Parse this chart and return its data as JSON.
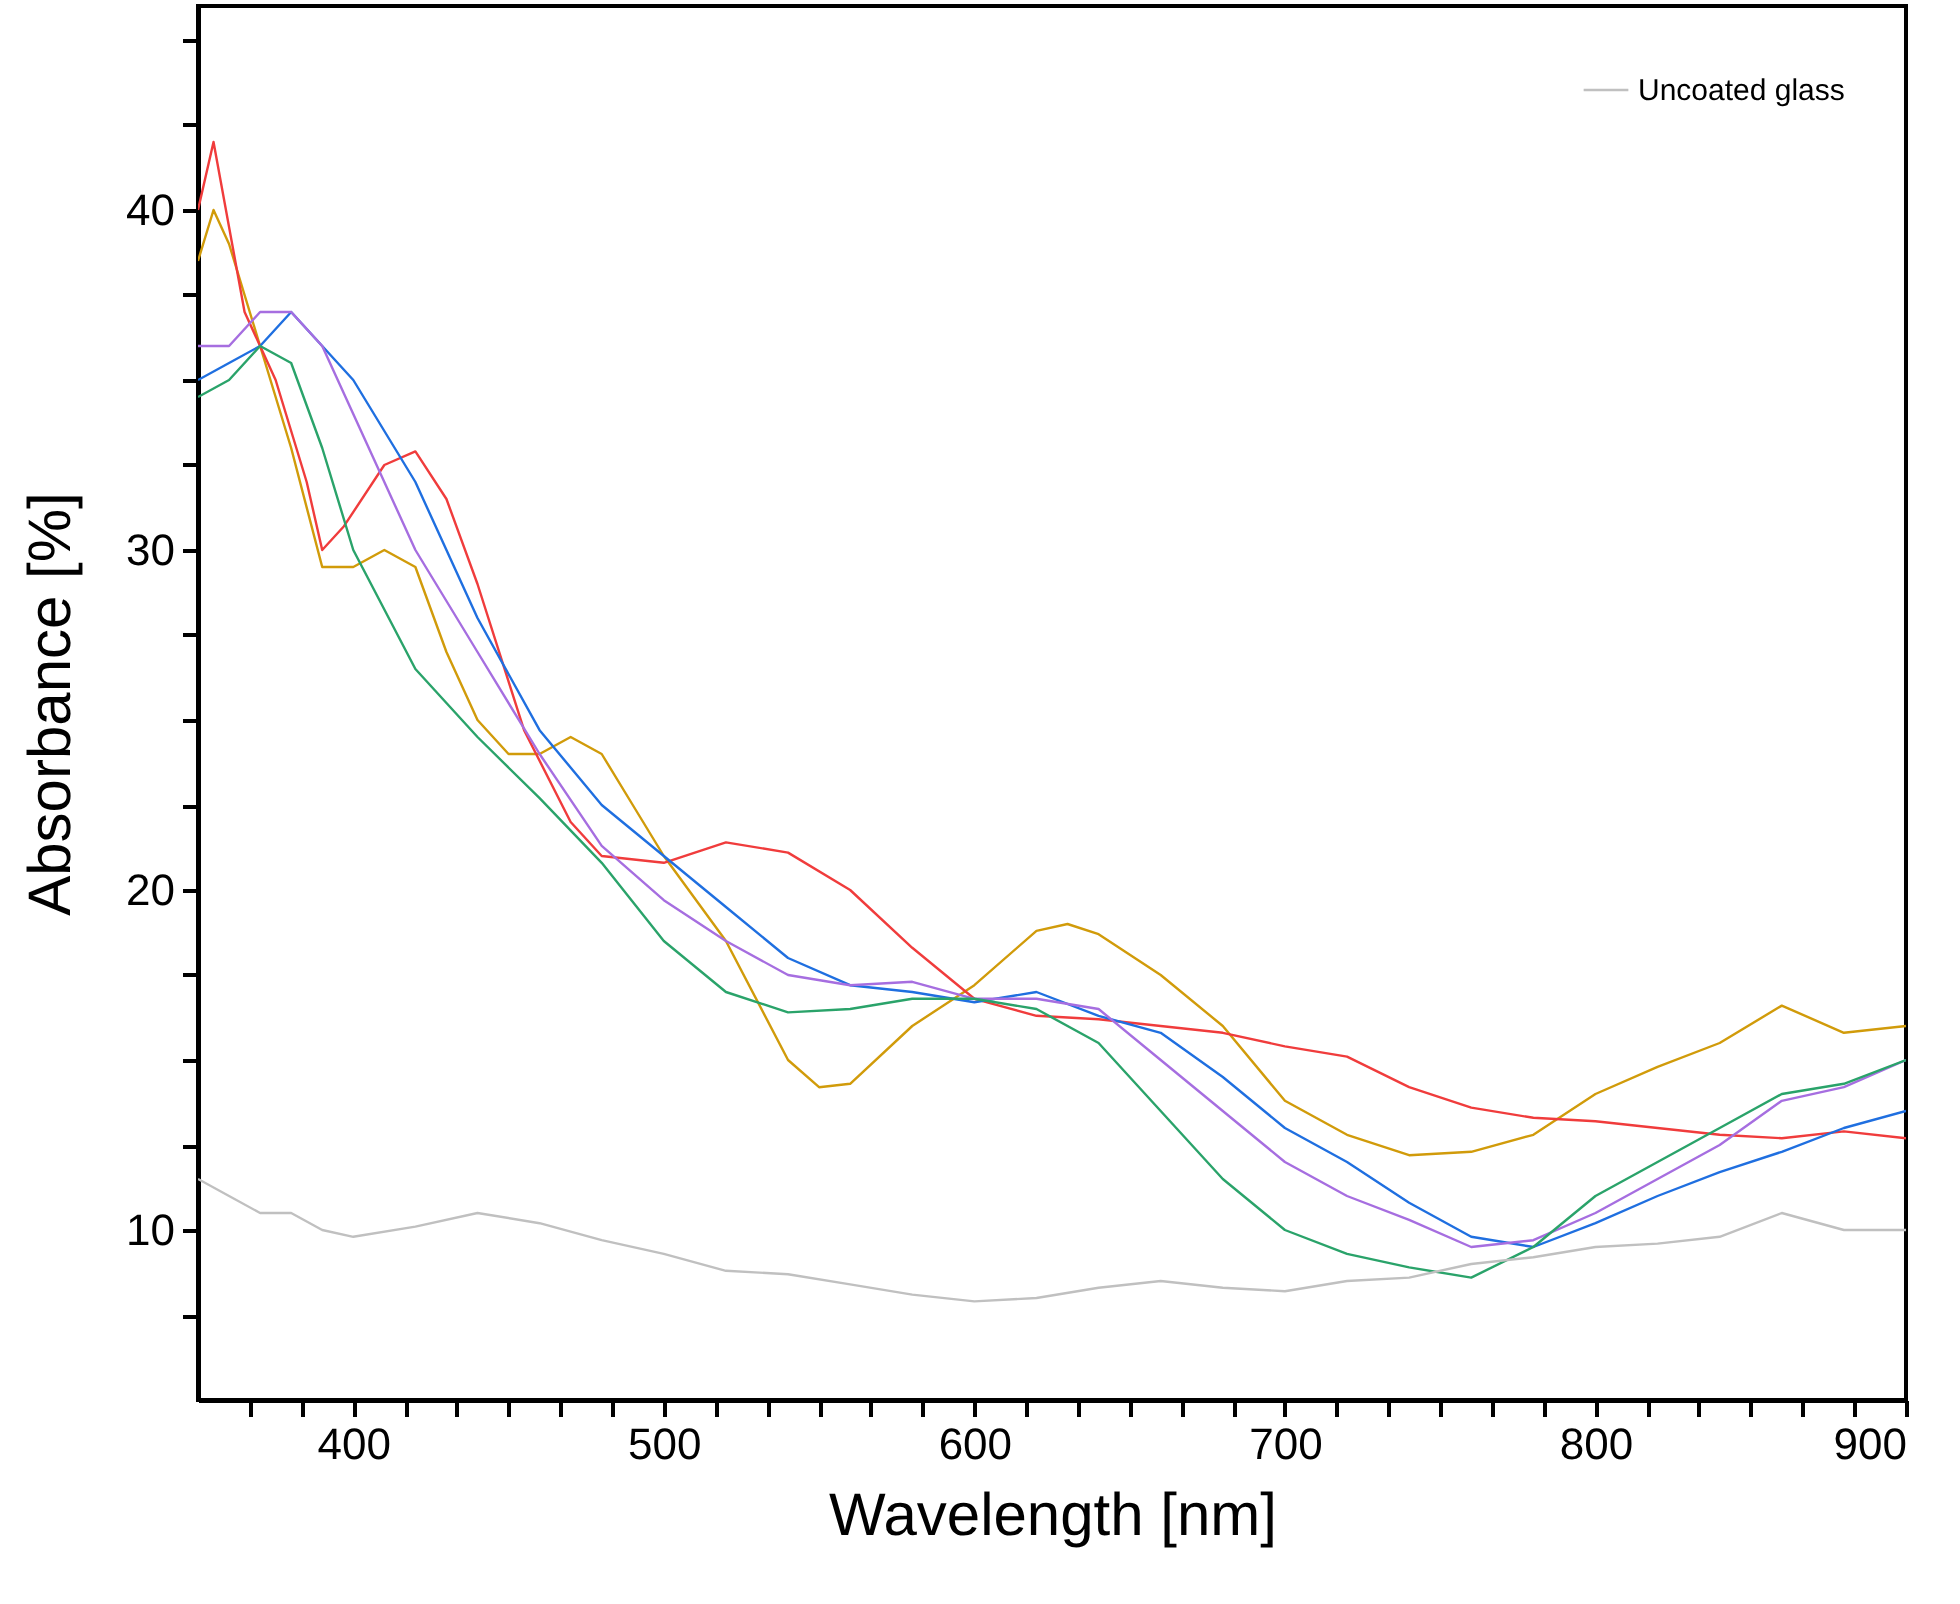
{
  "chart_data": {
    "type": "line",
    "xlabel": "Wavelength [nm]",
    "ylabel": "Absorbance [%]",
    "xlim": [
      350,
      900
    ],
    "ylim": [
      5,
      46
    ],
    "xticks": [
      {
        "value": 366.7,
        "label": null
      },
      {
        "value": 383.3,
        "label": null
      },
      400,
      {
        "value": 416.7,
        "label": null
      },
      {
        "value": 433.3,
        "label": null
      },
      {
        "value": 450,
        "label": null
      },
      {
        "value": 466.7,
        "label": null
      },
      {
        "value": 483.3,
        "label": null
      },
      500,
      {
        "value": 516.7,
        "label": null
      },
      {
        "value": 533.3,
        "label": null
      },
      {
        "value": 550,
        "label": null
      },
      {
        "value": 566.7,
        "label": null
      },
      {
        "value": 583.3,
        "label": null
      },
      600,
      {
        "value": 616.7,
        "label": null
      },
      {
        "value": 633.3,
        "label": null
      },
      {
        "value": 650,
        "label": null
      },
      {
        "value": 666.7,
        "label": null
      },
      {
        "value": 683.3,
        "label": null
      },
      700,
      {
        "value": 716.7,
        "label": null
      },
      {
        "value": 733.3,
        "label": null
      },
      {
        "value": 750,
        "label": null
      },
      {
        "value": 766.7,
        "label": null
      },
      {
        "value": 783.3,
        "label": null
      },
      800,
      {
        "value": 816.7,
        "label": null
      },
      {
        "value": 833.3,
        "label": null
      },
      {
        "value": 850,
        "label": null
      },
      {
        "value": 866.7,
        "label": null
      },
      {
        "value": 883.3,
        "label": null
      },
      900
    ],
    "yticks": [
      {
        "value": 7.5,
        "label": null
      },
      10,
      {
        "value": 12.5,
        "label": null
      },
      {
        "value": 15,
        "label": null
      },
      {
        "value": 17.5,
        "label": null
      },
      20,
      {
        "value": 22.5,
        "label": null
      },
      {
        "value": 25,
        "label": null
      },
      {
        "value": 27.5,
        "label": null
      },
      30,
      {
        "value": 32.5,
        "label": null
      },
      {
        "value": 35,
        "label": null
      },
      {
        "value": 37.5,
        "label": null
      },
      40,
      {
        "value": 42.5,
        "label": null
      },
      {
        "value": 45,
        "label": null
      }
    ],
    "grid": false,
    "legend": "top right",
    "marker": "none",
    "line_style": "solid",
    "series": [
      {
        "color": "#d19b0a",
        "x": [
          350,
          355,
          360,
          370,
          380,
          390,
          400,
          410,
          420,
          430,
          440,
          450,
          460,
          470,
          480,
          490,
          500,
          520,
          540,
          550,
          560,
          580,
          600,
          620,
          630,
          640,
          660,
          680,
          700,
          720,
          740,
          760,
          780,
          800,
          820,
          840,
          860,
          880,
          900
        ],
        "values": [
          38.5,
          40,
          39,
          36,
          33,
          29.5,
          29.5,
          30,
          29.5,
          27,
          25,
          24,
          24,
          24.5,
          24,
          22.5,
          21,
          18.5,
          15,
          14.2,
          14.3,
          16,
          17.2,
          18.8,
          19,
          18.7,
          17.5,
          16,
          13.8,
          12.8,
          12.2,
          12.3,
          12.8,
          14,
          14.8,
          15.5,
          16.6,
          15.8,
          16
        ]
      },
      {
        "color": "#f03c3c",
        "x": [
          350,
          355,
          365,
          375,
          385,
          390,
          397,
          410,
          420,
          430,
          440,
          455,
          470,
          480,
          500,
          520,
          540,
          560,
          580,
          600,
          620,
          640,
          660,
          680,
          700,
          720,
          740,
          760,
          780,
          800,
          820,
          840,
          860,
          880,
          900
        ],
        "values": [
          40,
          42,
          37,
          35,
          32,
          30,
          30.7,
          32.5,
          32.9,
          31.5,
          29,
          24.7,
          22,
          21,
          20.8,
          21.4,
          21.1,
          20,
          18.3,
          16.8,
          16.3,
          16.2,
          16,
          15.8,
          15.4,
          15.1,
          14.2,
          13.6,
          13.3,
          13.2,
          13,
          12.8,
          12.7,
          12.9,
          12.7
        ]
      },
      {
        "color": "#1f6fe0",
        "x": [
          350,
          360,
          370,
          380,
          390,
          400,
          420,
          440,
          460,
          480,
          500,
          520,
          540,
          560,
          580,
          600,
          620,
          640,
          660,
          680,
          700,
          720,
          740,
          760,
          780,
          800,
          820,
          840,
          860,
          880,
          900
        ],
        "values": [
          35,
          35.5,
          36,
          37,
          36,
          35,
          32,
          28,
          24.7,
          22.5,
          21,
          19.5,
          18,
          17.2,
          17,
          16.7,
          17,
          16.3,
          15.8,
          14.5,
          13,
          12,
          10.8,
          9.8,
          9.5,
          10.2,
          11,
          11.7,
          12.3,
          13,
          13.5
        ]
      },
      {
        "color": "#a66ee0",
        "x": [
          350,
          360,
          370,
          380,
          390,
          400,
          420,
          440,
          460,
          480,
          500,
          520,
          540,
          560,
          580,
          600,
          620,
          640,
          660,
          680,
          700,
          720,
          740,
          760,
          780,
          800,
          820,
          840,
          860,
          880,
          900
        ],
        "values": [
          36,
          36,
          37,
          37,
          36,
          34,
          30,
          27,
          24,
          21.3,
          19.7,
          18.5,
          17.5,
          17.2,
          17.3,
          16.8,
          16.8,
          16.5,
          15,
          13.5,
          12,
          11,
          10.3,
          9.5,
          9.7,
          10.5,
          11.5,
          12.5,
          13.8,
          14.2,
          15
        ]
      },
      {
        "color": "#2aa36a",
        "x": [
          350,
          360,
          370,
          380,
          390,
          400,
          420,
          440,
          460,
          480,
          500,
          520,
          540,
          560,
          580,
          600,
          620,
          640,
          660,
          680,
          700,
          720,
          740,
          760,
          780,
          800,
          820,
          840,
          860,
          880,
          900
        ],
        "values": [
          34.5,
          35,
          36,
          35.5,
          33,
          30,
          26.5,
          24.5,
          22.7,
          20.8,
          18.5,
          17,
          16.4,
          16.5,
          16.8,
          16.8,
          16.5,
          15.5,
          13.5,
          11.5,
          10,
          9.3,
          8.9,
          8.6,
          9.5,
          11,
          12,
          13,
          14,
          14.3,
          15
        ]
      },
      {
        "name": "Uncoated glass",
        "color": "#c0c0c0",
        "x": [
          350,
          360,
          370,
          380,
          390,
          400,
          420,
          440,
          460,
          480,
          500,
          520,
          540,
          560,
          580,
          600,
          620,
          640,
          660,
          680,
          700,
          720,
          740,
          760,
          780,
          800,
          820,
          840,
          860,
          880,
          900
        ],
        "values": [
          11.5,
          11,
          10.5,
          10.5,
          10,
          9.8,
          10.1,
          10.5,
          10.2,
          9.7,
          9.3,
          8.8,
          8.7,
          8.4,
          8.1,
          7.9,
          8,
          8.3,
          8.5,
          8.3,
          8.2,
          8.5,
          8.6,
          9,
          9.2,
          9.5,
          9.6,
          9.8,
          10.5,
          10,
          10
        ]
      }
    ]
  }
}
